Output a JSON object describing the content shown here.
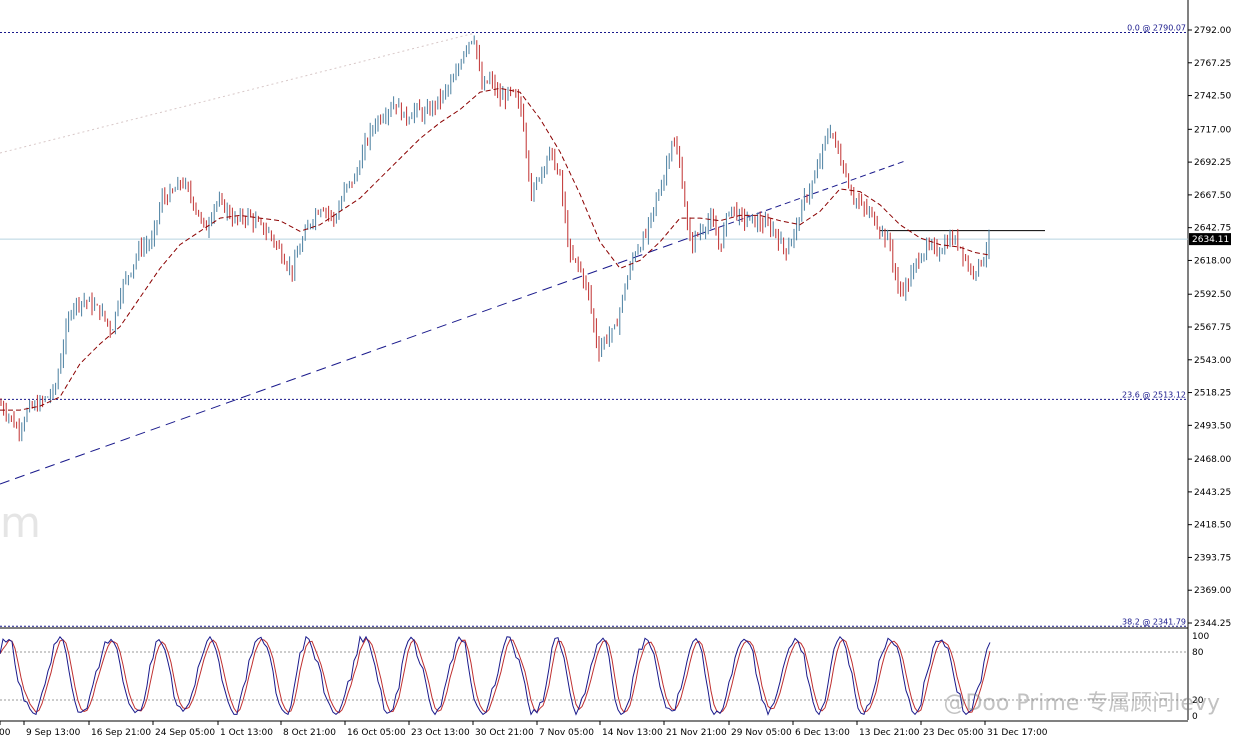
{
  "chart_data": {
    "type": "candlestick",
    "y_axis": {
      "min": 2338,
      "max": 2796,
      "ticks": [
        "2792.00",
        "2767.25",
        "2742.50",
        "2717.00",
        "2692.25",
        "2667.50",
        "2642.75",
        "2618.00",
        "2592.50",
        "2567.75",
        "2543.00",
        "2518.25",
        "2493.50",
        "2468.00",
        "2443.25",
        "2418.50",
        "2393.75",
        "2369.00",
        "2344.25"
      ]
    },
    "x_axis": {
      "ticks": [
        "00",
        "9 Sep 13:00",
        "16 Sep 21:00",
        "24 Sep 05:00",
        "1 Oct 13:00",
        "8 Oct 21:00",
        "16 Oct 05:00",
        "23 Oct 13:00",
        "30 Oct 21:00",
        "7 Nov 05:00",
        "14 Nov 13:00",
        "21 Nov 21:00",
        "29 Nov 05:00",
        "6 Dec 13:00",
        "13 Dec 21:00",
        "23 Dec 05:00",
        "31 Dec 17:00"
      ]
    },
    "current_price": "2634.11",
    "fibonacci": [
      {
        "label": "0.0 @ 2790.07",
        "value": 2790.07
      },
      {
        "label": "23.6 @ 2513.12",
        "value": 2513.12
      },
      {
        "label": "38.2 @ 2341.79",
        "value": 2341.79
      }
    ],
    "horizontal_line": 2640.5,
    "price_path": [
      [
        0,
        2510
      ],
      [
        10,
        2500
      ],
      [
        18,
        2490
      ],
      [
        28,
        2505
      ],
      [
        40,
        2510
      ],
      [
        55,
        2520
      ],
      [
        62,
        2550
      ],
      [
        72,
        2585
      ],
      [
        85,
        2588
      ],
      [
        100,
        2580
      ],
      [
        112,
        2565
      ],
      [
        120,
        2595
      ],
      [
        130,
        2610
      ],
      [
        140,
        2628
      ],
      [
        152,
        2632
      ],
      [
        162,
        2665
      ],
      [
        172,
        2668
      ],
      [
        182,
        2678
      ],
      [
        195,
        2660
      ],
      [
        205,
        2640
      ],
      [
        215,
        2662
      ],
      [
        225,
        2658
      ],
      [
        235,
        2648
      ],
      [
        248,
        2652
      ],
      [
        258,
        2645
      ],
      [
        270,
        2638
      ],
      [
        280,
        2625
      ],
      [
        292,
        2610
      ],
      [
        300,
        2628
      ],
      [
        312,
        2650
      ],
      [
        322,
        2660
      ],
      [
        335,
        2648
      ],
      [
        345,
        2672
      ],
      [
        355,
        2680
      ],
      [
        365,
        2705
      ],
      [
        375,
        2722
      ],
      [
        385,
        2730
      ],
      [
        395,
        2738
      ],
      [
        405,
        2725
      ],
      [
        415,
        2732
      ],
      [
        425,
        2728
      ],
      [
        440,
        2740
      ],
      [
        455,
        2755
      ],
      [
        465,
        2780
      ],
      [
        474,
        2788
      ],
      [
        482,
        2748
      ],
      [
        490,
        2755
      ],
      [
        500,
        2740
      ],
      [
        512,
        2745
      ],
      [
        522,
        2730
      ],
      [
        532,
        2665
      ],
      [
        540,
        2685
      ],
      [
        550,
        2700
      ],
      [
        560,
        2680
      ],
      [
        570,
        2620
      ],
      [
        578,
        2615
      ],
      [
        588,
        2595
      ],
      [
        598,
        2550
      ],
      [
        606,
        2560
      ],
      [
        615,
        2565
      ],
      [
        625,
        2598
      ],
      [
        635,
        2625
      ],
      [
        645,
        2635
      ],
      [
        655,
        2660
      ],
      [
        665,
        2685
      ],
      [
        672,
        2710
      ],
      [
        680,
        2690
      ],
      [
        690,
        2630
      ],
      [
        700,
        2640
      ],
      [
        710,
        2650
      ],
      [
        720,
        2628
      ],
      [
        730,
        2660
      ],
      [
        740,
        2650
      ],
      [
        752,
        2648
      ],
      [
        765,
        2645
      ],
      [
        775,
        2640
      ],
      [
        785,
        2625
      ],
      [
        795,
        2640
      ],
      [
        805,
        2665
      ],
      [
        815,
        2680
      ],
      [
        822,
        2700
      ],
      [
        830,
        2718
      ],
      [
        838,
        2700
      ],
      [
        845,
        2685
      ],
      [
        852,
        2668
      ],
      [
        862,
        2658
      ],
      [
        872,
        2652
      ],
      [
        882,
        2640
      ],
      [
        890,
        2630
      ],
      [
        898,
        2595
      ],
      [
        908,
        2600
      ],
      [
        918,
        2620
      ],
      [
        928,
        2628
      ],
      [
        938,
        2625
      ],
      [
        950,
        2635
      ],
      [
        960,
        2630
      ],
      [
        970,
        2610
      ],
      [
        980,
        2615
      ],
      [
        990,
        2634
      ]
    ],
    "moving_average": [
      [
        0,
        2505
      ],
      [
        20,
        2505
      ],
      [
        40,
        2508
      ],
      [
        60,
        2515
      ],
      [
        80,
        2540
      ],
      [
        100,
        2555
      ],
      [
        120,
        2568
      ],
      [
        140,
        2590
      ],
      [
        160,
        2612
      ],
      [
        180,
        2630
      ],
      [
        200,
        2640
      ],
      [
        220,
        2650
      ],
      [
        240,
        2652
      ],
      [
        260,
        2650
      ],
      [
        280,
        2648
      ],
      [
        300,
        2640
      ],
      [
        320,
        2645
      ],
      [
        340,
        2655
      ],
      [
        360,
        2665
      ],
      [
        380,
        2680
      ],
      [
        400,
        2695
      ],
      [
        420,
        2710
      ],
      [
        440,
        2722
      ],
      [
        460,
        2732
      ],
      [
        480,
        2745
      ],
      [
        500,
        2748
      ],
      [
        520,
        2745
      ],
      [
        540,
        2725
      ],
      [
        560,
        2700
      ],
      [
        580,
        2668
      ],
      [
        600,
        2632
      ],
      [
        620,
        2612
      ],
      [
        640,
        2618
      ],
      [
        660,
        2632
      ],
      [
        680,
        2650
      ],
      [
        700,
        2650
      ],
      [
        720,
        2648
      ],
      [
        740,
        2652
      ],
      [
        760,
        2652
      ],
      [
        780,
        2648
      ],
      [
        800,
        2645
      ],
      [
        820,
        2655
      ],
      [
        840,
        2672
      ],
      [
        860,
        2670
      ],
      [
        880,
        2660
      ],
      [
        900,
        2645
      ],
      [
        920,
        2635
      ],
      [
        940,
        2630
      ],
      [
        960,
        2628
      ],
      [
        975,
        2624
      ],
      [
        990,
        2622
      ]
    ],
    "stochastic_panel": {
      "ticks": [
        "100",
        "80",
        "20",
        "0"
      ],
      "levels": [
        80,
        20
      ]
    }
  },
  "watermark": "@Doo Prime 专属顾问levy",
  "watermark_left": "m"
}
